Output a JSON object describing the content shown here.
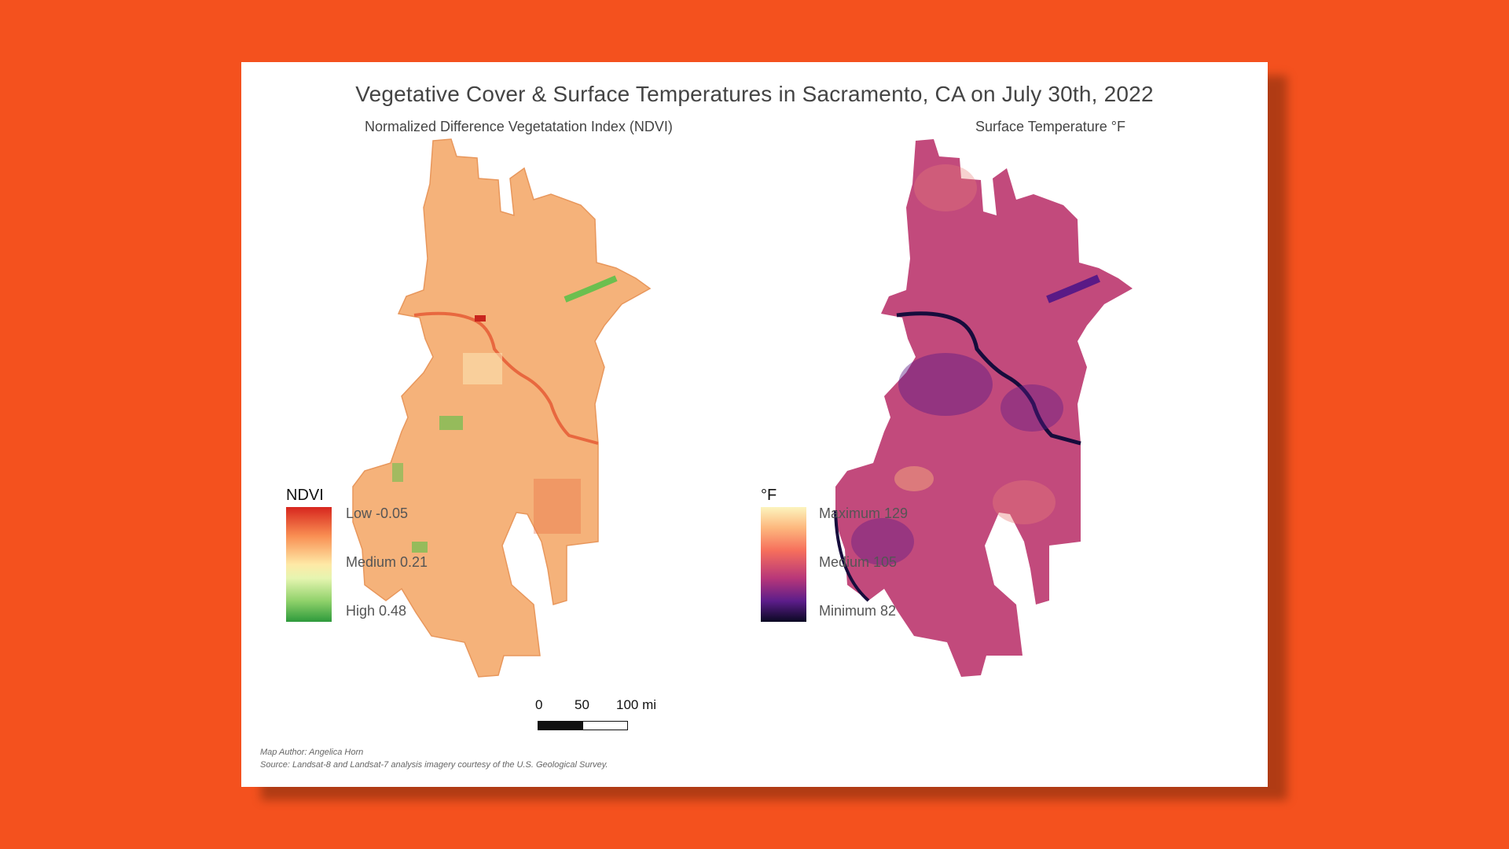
{
  "title": "Vegetative Cover & Surface Temperatures in Sacramento, CA on July 30th, 2022",
  "left_map": {
    "subtitle": "Normalized Difference Vegetatation Index (NDVI)",
    "legend": {
      "title": "NDVI",
      "labels": [
        "Low -0.05",
        "Medium 0.21",
        "High 0.48"
      ],
      "colors": [
        "#d7261e",
        "#fee9a6",
        "#2e9a3c"
      ]
    },
    "fill_color": "#f5b27a",
    "accent_color": "#e8683f",
    "vegetation_color": "#6cbf4f"
  },
  "right_map": {
    "subtitle": "Surface Temperature °F",
    "legend": {
      "title": "°F",
      "labels": [
        "Maximum 129",
        "Medium 105",
        "Minimum 82"
      ],
      "colors": [
        "#fcf4bd",
        "#f66f5c",
        "#0a0822"
      ]
    },
    "fill_color": "#c24a7c",
    "cool_color": "#5a1a86",
    "river_color": "#160c3c"
  },
  "scale_bar": {
    "ticks": [
      "0",
      "50",
      "100 mi"
    ]
  },
  "footer": {
    "author": "Map Author: Angelica Horn",
    "source": "Source: Landsat-8 and Landsat-7 analysis imagery courtesy of the U.S. Geological Survey."
  }
}
